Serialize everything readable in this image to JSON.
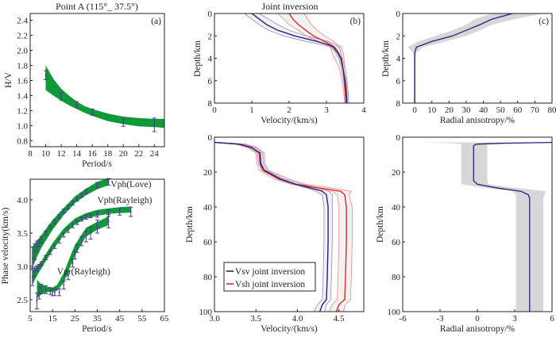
{
  "figure": {
    "colors": {
      "band_green": "#0f9a3a",
      "error_bar": "#4a3a8c",
      "vsv": "#2a1f7a",
      "vsh": "#e02a22",
      "vsv_band": "#8f8ad0",
      "vsh_band": "#f08a86",
      "uncertainty_gray": "#d9d6da",
      "frame": "#222222"
    }
  },
  "chart_data": [
    {
      "id": "hv",
      "type": "line",
      "title": "Point A (115°_ 37.5°)",
      "panel_label": "(a)",
      "xlabel": "Period/s",
      "ylabel": "H/V",
      "xlim": [
        8,
        25.3
      ],
      "ylim": [
        0.72,
        2.49
      ],
      "xticks": [
        8,
        10,
        12,
        14,
        16,
        18,
        20,
        22,
        24
      ],
      "yticks": [
        0.8,
        1.0,
        1.2,
        1.4,
        1.6,
        1.8,
        2.0,
        2.2,
        2.4
      ],
      "ytick_format": 1,
      "band": {
        "x": [
          10,
          11,
          12,
          13,
          14,
          15,
          16,
          18,
          20,
          22,
          24,
          25.3
        ],
        "upper": [
          1.8,
          1.62,
          1.49,
          1.4,
          1.32,
          1.26,
          1.22,
          1.16,
          1.12,
          1.1,
          1.09,
          1.09
        ],
        "lower": [
          1.47,
          1.4,
          1.33,
          1.27,
          1.22,
          1.17,
          1.13,
          1.06,
          1.02,
          0.99,
          0.98,
          0.97
        ]
      },
      "observations": {
        "x": [
          10,
          12,
          14,
          16,
          20,
          24
        ],
        "y": [
          1.67,
          1.39,
          1.28,
          1.18,
          1.04,
          1.01
        ],
        "err": [
          0.06,
          0.05,
          0.04,
          0.04,
          0.05,
          0.09
        ]
      }
    },
    {
      "id": "disp",
      "type": "line",
      "xlabel": "Period/s",
      "ylabel": "Phase velocity(km/s)",
      "xlim": [
        5,
        65
      ],
      "ylim": [
        2.32,
        4.31
      ],
      "xticks": [
        5,
        15,
        25,
        35,
        45,
        55,
        65
      ],
      "yticks": [
        2.5,
        3.0,
        3.5,
        4.0
      ],
      "ytick_format": 1,
      "series": [
        {
          "name": "Vph(Love)",
          "band": {
            "x": [
              6,
              8,
              10,
              15,
              20,
              25,
              30,
              35,
              40
            ],
            "upper": [
              3.3,
              3.38,
              3.47,
              3.7,
              3.88,
              4.05,
              4.17,
              4.27,
              4.33
            ],
            "lower": [
              2.98,
              3.14,
              3.28,
              3.55,
              3.77,
              3.95,
              4.07,
              4.16,
              4.22
            ]
          },
          "observations": {
            "x": [
              6,
              7,
              8,
              9,
              10,
              12,
              14,
              16,
              18,
              20,
              22,
              24,
              26,
              28,
              30,
              35,
              40
            ],
            "y": [
              3.12,
              3.22,
              3.3,
              3.35,
              3.4,
              3.5,
              3.59,
              3.67,
              3.75,
              3.83,
              3.89,
              3.95,
              4.01,
              4.07,
              4.12,
              4.22,
              4.27
            ],
            "err": [
              0.17,
              0.12,
              0.08,
              0.05,
              0.05,
              0.03,
              0.03,
              0.03,
              0.03,
              0.03,
              0.03,
              0.03,
              0.03,
              0.03,
              0.03,
              0.04,
              0.05
            ]
          },
          "label_position": [
            41,
            4.19
          ]
        },
        {
          "name": "Vph(Rayleigh)",
          "band": {
            "x": [
              6,
              8,
              10,
              15,
              20,
              25,
              30,
              35,
              40,
              45,
              50
            ],
            "upper": [
              2.93,
              3.0,
              3.08,
              3.35,
              3.57,
              3.72,
              3.8,
              3.85,
              3.87,
              3.89,
              3.9
            ],
            "lower": [
              2.72,
              2.86,
              2.97,
              3.24,
              3.48,
              3.63,
              3.72,
              3.76,
              3.79,
              3.8,
              3.81
            ]
          },
          "observations": {
            "x": [
              6,
              7,
              8,
              9,
              10,
              12,
              14,
              16,
              18,
              20,
              22,
              24,
              26,
              28,
              30,
              32,
              35,
              40,
              45,
              50
            ],
            "y": [
              2.84,
              2.92,
              2.97,
              3.0,
              3.04,
              3.13,
              3.21,
              3.3,
              3.38,
              3.47,
              3.54,
              3.61,
              3.66,
              3.71,
              3.74,
              3.76,
              3.78,
              3.8,
              3.82,
              3.82
            ],
            "err": [
              0.13,
              0.07,
              0.04,
              0.03,
              0.03,
              0.03,
              0.03,
              0.03,
              0.03,
              0.03,
              0.03,
              0.03,
              0.03,
              0.03,
              0.03,
              0.03,
              0.04,
              0.05,
              0.05,
              0.07
            ]
          },
          "label_position": [
            35,
            3.95
          ]
        },
        {
          "name": "Vgr(Rayleigh)",
          "band": {
            "x": [
              8,
              10,
              12,
              15,
              17,
              20,
              23,
              25,
              28,
              30,
              35,
              40
            ],
            "upper": [
              2.8,
              2.73,
              2.7,
              2.68,
              2.72,
              2.9,
              3.16,
              3.32,
              3.48,
              3.58,
              3.67,
              3.75
            ],
            "lower": [
              2.52,
              2.58,
              2.61,
              2.62,
              2.63,
              2.76,
              3.0,
              3.16,
              3.34,
              3.45,
              3.55,
              3.62
            ]
          },
          "observations": {
            "x": [
              8,
              9,
              10,
              12,
              14,
              15,
              16,
              18,
              20,
              22,
              24,
              25,
              26,
              28,
              30,
              32,
              35,
              40
            ],
            "y": [
              2.48,
              2.6,
              2.66,
              2.65,
              2.63,
              2.61,
              2.61,
              2.61,
              2.72,
              2.86,
              3.05,
              3.17,
              3.27,
              3.38,
              3.45,
              3.5,
              3.6,
              3.68
            ],
            "err": [
              0.12,
              0.09,
              0.07,
              0.06,
              0.05,
              0.05,
              0.05,
              0.05,
              0.06,
              0.06,
              0.06,
              0.06,
              0.06,
              0.07,
              0.08,
              0.09,
              0.1,
              0.1
            ]
          },
          "label_position": [
            17,
            2.88
          ]
        }
      ]
    },
    {
      "id": "vs_shallow",
      "type": "line",
      "title": "Joint inversion",
      "panel_label": "(b)",
      "xlabel": "Velocity/(km/s)",
      "ylabel": "Depth/km",
      "xlim": [
        0,
        4
      ],
      "ylim": [
        0,
        8
      ],
      "y_inverted": true,
      "xticks": [
        0,
        1,
        2,
        3,
        4
      ],
      "yticks": [
        0,
        2,
        4,
        6,
        8
      ],
      "ytick_format": 0,
      "series": [
        {
          "name": "Vsv",
          "depth": [
            0,
            0.5,
            1.0,
            1.5,
            2.0,
            2.5,
            2.8,
            3.0,
            3.5,
            4.0,
            5.0,
            6.0,
            7.0,
            8.0
          ],
          "values": [
            1.0,
            1.2,
            1.4,
            1.7,
            2.15,
            2.75,
            3.05,
            3.18,
            3.3,
            3.38,
            3.45,
            3.5,
            3.53,
            3.55
          ],
          "band_low": [
            0.8,
            1.0,
            1.2,
            1.45,
            1.85,
            2.45,
            2.9,
            3.12,
            3.25,
            3.33,
            3.41,
            3.46,
            3.5,
            3.52
          ],
          "band_high": [
            1.2,
            1.45,
            1.7,
            2.0,
            2.45,
            3.05,
            3.25,
            3.35,
            3.38,
            3.43,
            3.5,
            3.55,
            3.58,
            3.6
          ]
        },
        {
          "name": "Vsh",
          "depth": [
            0,
            0.5,
            1.0,
            1.5,
            2.0,
            2.5,
            2.8,
            3.0,
            3.5,
            4.0,
            5.0,
            6.0,
            7.0,
            8.0
          ],
          "values": [
            2.0,
            2.1,
            2.25,
            2.45,
            2.65,
            2.95,
            3.12,
            3.22,
            3.32,
            3.4,
            3.45,
            3.48,
            3.5,
            3.52
          ],
          "band_low": [
            1.7,
            1.85,
            2.0,
            2.25,
            2.45,
            2.8,
            3.0,
            3.1,
            3.15,
            3.22,
            3.35,
            3.42,
            3.46,
            3.49
          ],
          "band_high": [
            2.4,
            2.5,
            2.6,
            2.75,
            2.95,
            3.2,
            3.3,
            3.4,
            3.45,
            3.47,
            3.5,
            3.53,
            3.55,
            3.56
          ]
        }
      ]
    },
    {
      "id": "anis_shallow",
      "type": "line",
      "panel_label": "(c)",
      "xlabel": "Radial anisotropy/%",
      "ylabel": "Depth/km",
      "xlim": [
        -7,
        80
      ],
      "ylim": [
        0,
        8
      ],
      "y_inverted": true,
      "xticks": [
        0,
        10,
        20,
        30,
        40,
        50,
        60,
        70,
        80
      ],
      "yticks": [
        0,
        2,
        4,
        6,
        8
      ],
      "ytick_format": 0,
      "series": [
        {
          "name": "Radial anisotropy",
          "depth": [
            0,
            0.5,
            1.0,
            1.5,
            2.0,
            2.5,
            3.0,
            3.5,
            4.0,
            6.0,
            8.0
          ],
          "values": [
            57,
            45,
            38,
            30,
            22,
            10,
            1,
            0,
            0,
            0,
            0
          ],
          "band_low": [
            45,
            35,
            30,
            22,
            12,
            2,
            -4,
            -1,
            -0.5,
            -0.5,
            -0.5
          ],
          "band_high": [
            75,
            58,
            45,
            38,
            30,
            18,
            5,
            1,
            0.5,
            0.5,
            0.5
          ]
        }
      ]
    },
    {
      "id": "vs_deep",
      "type": "line",
      "xlabel": "Velocity/(km/s)",
      "ylabel": "Depth/km",
      "xlim": [
        3.0,
        4.8
      ],
      "ylim": [
        0,
        100
      ],
      "y_inverted": true,
      "xticks": [
        3.0,
        3.5,
        4.0,
        4.5
      ],
      "xtick_format": 1,
      "yticks": [
        0,
        20,
        40,
        60,
        80,
        100
      ],
      "ytick_format": 0,
      "legend": {
        "position": "lower-left",
        "entries": [
          {
            "label": "Vsv joint inversion",
            "series": "Vsv"
          },
          {
            "label": "Vsh joint inversion",
            "series": "Vsh"
          }
        ]
      },
      "series": [
        {
          "name": "Vsv",
          "depth": [
            3,
            4,
            6,
            9,
            15,
            19,
            24,
            27,
            29,
            31,
            33,
            40,
            60,
            80,
            93,
            96,
            100
          ],
          "values": [
            3.0,
            3.3,
            3.45,
            3.55,
            3.56,
            3.6,
            3.8,
            3.98,
            4.15,
            4.3,
            4.35,
            4.37,
            4.37,
            4.36,
            4.35,
            4.3,
            4.27
          ],
          "band_low": [
            3.0,
            3.28,
            3.42,
            3.52,
            3.53,
            3.58,
            3.76,
            3.95,
            4.1,
            4.22,
            4.3,
            4.32,
            4.32,
            4.31,
            4.3,
            4.24,
            4.2
          ],
          "band_high": [
            3.02,
            3.35,
            3.5,
            3.58,
            3.59,
            3.63,
            3.85,
            4.05,
            4.25,
            4.38,
            4.42,
            4.42,
            4.42,
            4.41,
            4.4,
            4.35,
            4.33
          ]
        },
        {
          "name": "Vsh",
          "depth": [
            3,
            4,
            6,
            9,
            15,
            19,
            24,
            27,
            29,
            31,
            33,
            40,
            60,
            80,
            93,
            96,
            100
          ],
          "values": [
            3.0,
            3.3,
            3.45,
            3.54,
            3.55,
            3.58,
            3.78,
            3.98,
            4.25,
            4.52,
            4.57,
            4.59,
            4.59,
            4.58,
            4.57,
            4.5,
            4.47
          ],
          "band_low": [
            3.0,
            3.25,
            3.4,
            3.5,
            3.51,
            3.54,
            3.72,
            3.92,
            4.15,
            4.42,
            4.48,
            4.5,
            4.5,
            4.49,
            4.48,
            4.42,
            4.38
          ],
          "band_high": [
            3.05,
            3.38,
            3.52,
            3.6,
            3.61,
            3.65,
            3.9,
            4.1,
            4.4,
            4.65,
            4.62,
            4.66,
            4.66,
            4.65,
            4.64,
            4.58,
            4.55
          ]
        }
      ]
    },
    {
      "id": "anis_deep",
      "type": "line",
      "xlabel": "Radial anisotropy/%",
      "ylabel": "Depth/km",
      "xlim": [
        -6,
        6
      ],
      "ylim": [
        0,
        100
      ],
      "y_inverted": true,
      "xticks": [
        -6,
        -3,
        0,
        3,
        6
      ],
      "yticks": [
        0,
        20,
        40,
        60,
        80,
        100
      ],
      "ytick_format": 0,
      "series": [
        {
          "name": "Radial anisotropy",
          "depth": [
            3,
            3.5,
            4,
            5,
            25,
            27,
            29,
            31,
            33,
            35,
            100
          ],
          "values": [
            6.0,
            2.0,
            -0.1,
            -0.3,
            -0.3,
            0.0,
            1.5,
            3.5,
            4.1,
            4.2,
            4.2
          ],
          "band_low": [
            -4.5,
            -2.0,
            -1.3,
            -1.3,
            -1.3,
            -1.3,
            0.5,
            2.8,
            3.1,
            3.1,
            3.1
          ],
          "band_high": [
            6.0,
            4.0,
            0.8,
            0.8,
            0.8,
            0.9,
            3.0,
            5.5,
            5.4,
            5.3,
            5.3
          ]
        }
      ]
    }
  ]
}
